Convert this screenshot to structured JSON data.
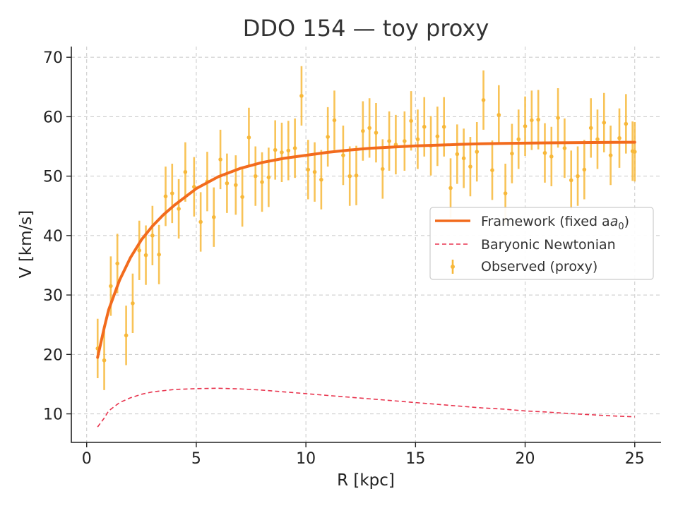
{
  "chart_data": {
    "type": "line",
    "title": "DDO 154 — toy proxy",
    "xlabel": "R [kpc]",
    "ylabel": "V [km/s]",
    "xlim": [
      -0.7,
      26.2
    ],
    "ylim": [
      5.2,
      71.8
    ],
    "xticks": [
      0,
      5,
      10,
      15,
      20,
      25
    ],
    "yticks": [
      10,
      20,
      30,
      40,
      50,
      60,
      70
    ],
    "grid": true,
    "legend_position": "center-right",
    "colors": {
      "framework": "#f26b1d",
      "baryonic": "#e8344e",
      "observed": "#f7b83a"
    },
    "series": [
      {
        "name": "Framework (fixed a",
        "name_sub": "0",
        "name_suffix": ")",
        "kind": "line",
        "x": [
          0.5,
          0.8,
          1.0,
          1.5,
          2.0,
          2.5,
          3.0,
          3.5,
          4.0,
          5.0,
          6.0,
          7.0,
          8.0,
          9.0,
          10.0,
          11.0,
          12.0,
          13.0,
          14.0,
          15.0,
          16.0,
          17.0,
          18.0,
          19.0,
          20.0,
          21.0,
          22.0,
          23.0,
          24.0,
          25.0
        ],
        "y": [
          19.5,
          24.5,
          27.5,
          32.5,
          36.3,
          39.3,
          41.6,
          43.5,
          45.1,
          47.9,
          49.9,
          51.3,
          52.3,
          53.0,
          53.5,
          54.0,
          54.4,
          54.7,
          54.9,
          55.1,
          55.2,
          55.35,
          55.45,
          55.5,
          55.55,
          55.6,
          55.62,
          55.65,
          55.68,
          55.7
        ]
      },
      {
        "name": "Baryonic Newtonian",
        "kind": "dashed-line",
        "x": [
          0.5,
          0.8,
          1.0,
          1.5,
          2.0,
          2.5,
          3.0,
          4.0,
          5.0,
          6.0,
          7.0,
          8.0,
          9.0,
          10.0,
          11.0,
          12.0,
          13.0,
          14.0,
          15.0,
          16.0,
          17.0,
          18.0,
          19.0,
          20.0,
          21.0,
          22.0,
          23.0,
          24.0,
          25.0
        ],
        "y": [
          7.8,
          9.3,
          10.5,
          11.9,
          12.7,
          13.3,
          13.7,
          14.1,
          14.25,
          14.3,
          14.2,
          14.0,
          13.7,
          13.4,
          13.1,
          12.8,
          12.5,
          12.2,
          11.9,
          11.6,
          11.3,
          11.0,
          10.8,
          10.5,
          10.3,
          10.05,
          9.85,
          9.65,
          9.5
        ]
      },
      {
        "name": "Observed (proxy)",
        "kind": "errorbar",
        "yerr": 5,
        "x": [
          0.5,
          0.8,
          1.1,
          1.4,
          1.8,
          2.1,
          2.4,
          2.7,
          3.0,
          3.3,
          3.6,
          3.9,
          4.2,
          4.5,
          4.9,
          5.2,
          5.5,
          5.8,
          6.1,
          6.4,
          6.8,
          7.1,
          7.4,
          7.7,
          8.0,
          8.3,
          8.6,
          8.9,
          9.2,
          9.5,
          9.8,
          10.1,
          10.4,
          10.7,
          11.0,
          11.3,
          11.7,
          12.0,
          12.3,
          12.6,
          12.9,
          13.2,
          13.5,
          13.8,
          14.1,
          14.5,
          14.8,
          15.1,
          15.4,
          15.7,
          16.0,
          16.3,
          16.6,
          16.9,
          17.2,
          17.5,
          17.8,
          18.1,
          18.5,
          18.8,
          19.1,
          19.4,
          19.7,
          20.0,
          20.3,
          20.6,
          20.9,
          21.2,
          21.5,
          21.8,
          22.1,
          22.4,
          22.7,
          23.0,
          23.3,
          23.6,
          23.9,
          24.3,
          24.6,
          24.9,
          25.0
        ],
        "y": [
          21.0,
          19.0,
          31.5,
          35.3,
          23.2,
          28.6,
          37.5,
          36.7,
          40.0,
          36.8,
          46.6,
          47.1,
          44.5,
          50.7,
          48.2,
          42.3,
          49.1,
          43.1,
          52.8,
          48.8,
          48.5,
          46.5,
          56.5,
          50.0,
          49.0,
          49.8,
          54.4,
          54.0,
          54.3,
          54.7,
          63.5,
          51.1,
          50.7,
          49.4,
          56.6,
          59.4,
          53.5,
          50.0,
          50.1,
          57.6,
          58.1,
          57.3,
          51.2,
          55.9,
          55.3,
          55.9,
          59.3,
          56.2,
          58.3,
          55.1,
          56.7,
          58.3,
          48.0,
          53.7,
          53.0,
          51.6,
          54.1,
          62.8,
          51.0,
          60.3,
          47.1,
          53.8,
          56.2,
          58.4,
          59.4,
          59.5,
          53.9,
          53.3,
          59.8,
          54.7,
          49.3,
          50.0,
          51.1,
          58.1,
          56.2,
          59.0,
          53.5,
          56.4,
          58.8,
          54.2,
          54.1
        ]
      }
    ]
  }
}
